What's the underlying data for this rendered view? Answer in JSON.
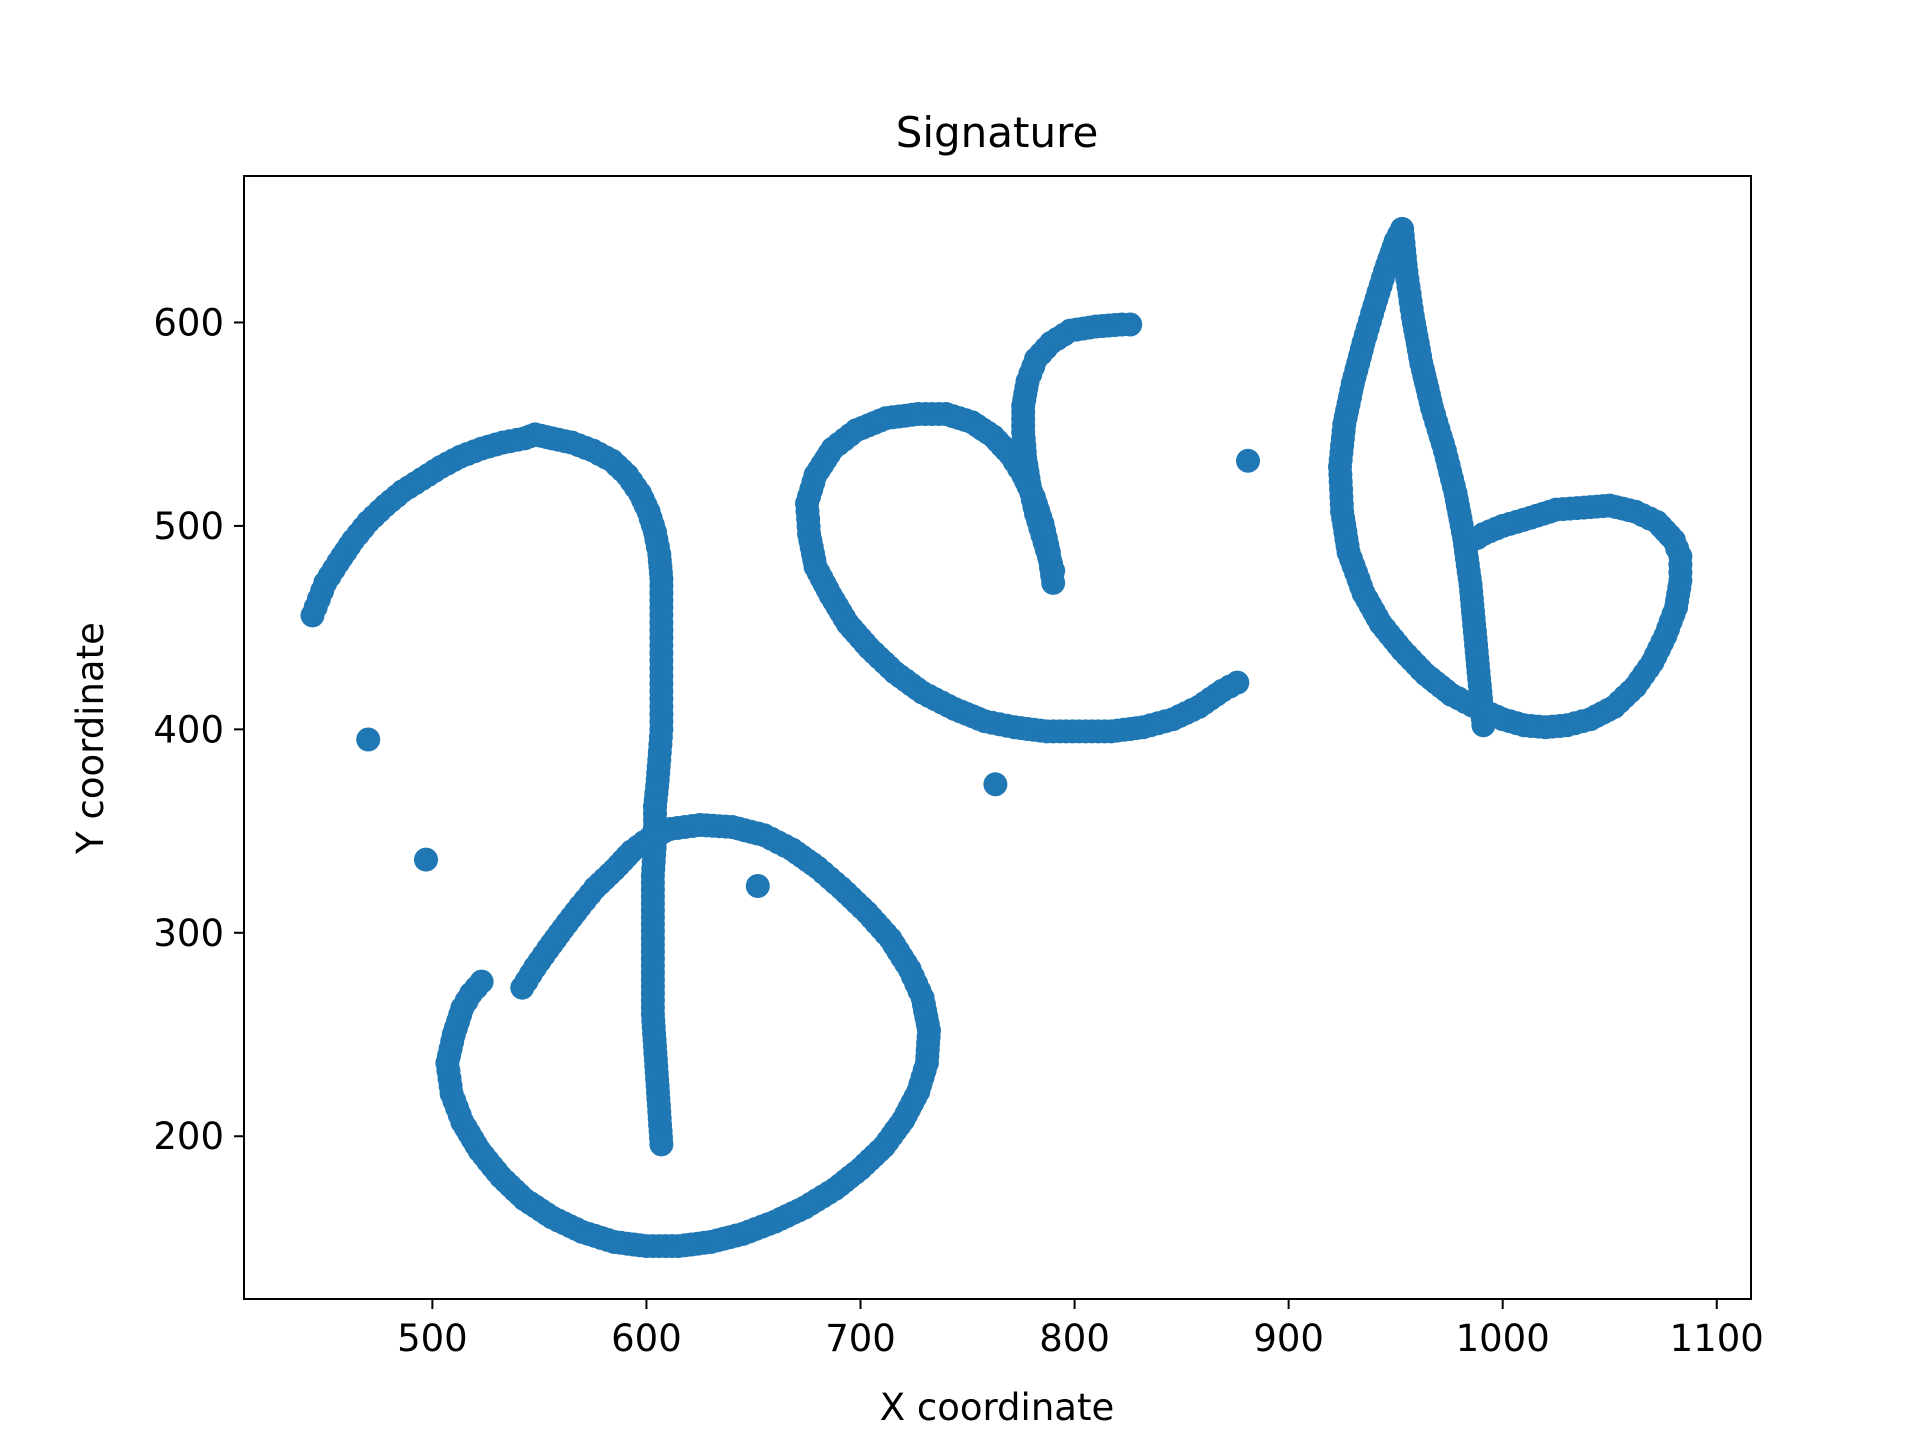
{
  "chart_data": {
    "type": "scatter",
    "title": "Signature",
    "xlabel": "X coordinate",
    "ylabel": "Y coordinate",
    "xlim": [
      412,
      1116
    ],
    "ylim": [
      120,
      672
    ],
    "xticks": [
      500,
      600,
      700,
      800,
      900,
      1000,
      1100
    ],
    "yticks": [
      200,
      300,
      400,
      500,
      600
    ],
    "grid": false,
    "color": "#1f77b4",
    "strokes": [
      [
        [
          444,
          456
        ],
        [
          447,
          464
        ],
        [
          450,
          472
        ],
        [
          456,
          482
        ],
        [
          463,
          493
        ],
        [
          470,
          502
        ],
        [
          478,
          510
        ],
        [
          486,
          517
        ],
        [
          495,
          523
        ],
        [
          504,
          529
        ],
        [
          513,
          534
        ],
        [
          523,
          538
        ],
        [
          533,
          541
        ],
        [
          543,
          543
        ],
        [
          548,
          545
        ],
        [
          556,
          543
        ],
        [
          565,
          541
        ],
        [
          575,
          537
        ],
        [
          584,
          532
        ],
        [
          591,
          525
        ],
        [
          597,
          516
        ],
        [
          601,
          507
        ],
        [
          604,
          497
        ],
        [
          606,
          486
        ],
        [
          607,
          474
        ],
        [
          607,
          460
        ],
        [
          607,
          445
        ],
        [
          607,
          430
        ],
        [
          607,
          415
        ],
        [
          607,
          400
        ],
        [
          606,
          385
        ],
        [
          605,
          372
        ],
        [
          604,
          362
        ]
      ],
      [
        [
          604,
          362
        ],
        [
          604,
          345
        ],
        [
          603,
          328
        ],
        [
          603,
          311
        ],
        [
          603,
          294
        ],
        [
          603,
          277
        ],
        [
          603,
          260
        ],
        [
          604,
          244
        ],
        [
          605,
          228
        ],
        [
          606,
          212
        ],
        [
          607,
          196
        ]
      ],
      [
        [
          542,
          273
        ],
        [
          548,
          283
        ],
        [
          554,
          292
        ],
        [
          561,
          302
        ],
        [
          569,
          313
        ],
        [
          576,
          322
        ],
        [
          585,
          331
        ],
        [
          593,
          340
        ],
        [
          602,
          347
        ],
        [
          611,
          351
        ],
        [
          625,
          353
        ],
        [
          640,
          352
        ],
        [
          655,
          348
        ],
        [
          668,
          341
        ],
        [
          680,
          332
        ],
        [
          691,
          322
        ],
        [
          703,
          310
        ],
        [
          714,
          297
        ],
        [
          723,
          282
        ],
        [
          729,
          268
        ],
        [
          732,
          252
        ],
        [
          731,
          236
        ],
        [
          727,
          222
        ],
        [
          720,
          208
        ],
        [
          711,
          195
        ],
        [
          700,
          184
        ],
        [
          688,
          174
        ],
        [
          674,
          165
        ],
        [
          660,
          158
        ],
        [
          645,
          152
        ],
        [
          630,
          148
        ],
        [
          615,
          146
        ],
        [
          600,
          146
        ],
        [
          585,
          148
        ],
        [
          570,
          153
        ],
        [
          556,
          160
        ],
        [
          543,
          169
        ],
        [
          532,
          180
        ],
        [
          522,
          193
        ],
        [
          514,
          207
        ],
        [
          509,
          221
        ],
        [
          507,
          236
        ],
        [
          510,
          250
        ],
        [
          514,
          263
        ],
        [
          518,
          270
        ],
        [
          523,
          276
        ]
      ],
      [
        [
          790,
          472
        ],
        [
          788,
          487
        ],
        [
          785,
          501
        ],
        [
          781,
          514
        ],
        [
          776,
          525
        ],
        [
          770,
          535
        ],
        [
          762,
          544
        ],
        [
          752,
          551
        ],
        [
          740,
          555
        ],
        [
          727,
          555
        ],
        [
          712,
          553
        ],
        [
          698,
          547
        ],
        [
          687,
          538
        ],
        [
          679,
          525
        ],
        [
          675,
          511
        ],
        [
          676,
          496
        ],
        [
          679,
          480
        ],
        [
          686,
          466
        ],
        [
          694,
          452
        ],
        [
          704,
          440
        ],
        [
          716,
          428
        ],
        [
          729,
          418
        ],
        [
          744,
          410
        ],
        [
          758,
          404
        ],
        [
          772,
          401
        ],
        [
          787,
          399
        ],
        [
          802,
          399
        ],
        [
          817,
          399
        ],
        [
          832,
          401
        ],
        [
          846,
          405
        ],
        [
          858,
          411
        ],
        [
          869,
          419
        ],
        [
          876,
          423
        ]
      ],
      [
        [
          790,
          478
        ],
        [
          786,
          492
        ],
        [
          782,
          506
        ],
        [
          779,
          520
        ],
        [
          777,
          533
        ],
        [
          776,
          546
        ],
        [
          776,
          559
        ],
        [
          778,
          571
        ],
        [
          782,
          582
        ],
        [
          789,
          590
        ],
        [
          798,
          596
        ],
        [
          810,
          598
        ],
        [
          822,
          599
        ],
        [
          826,
          599
        ]
      ],
      [
        [
          991,
          402
        ],
        [
          989,
          425
        ],
        [
          987,
          448
        ],
        [
          985,
          471
        ],
        [
          982,
          494
        ],
        [
          978,
          516
        ],
        [
          973,
          537
        ],
        [
          967,
          558
        ],
        [
          962,
          580
        ],
        [
          958,
          603
        ],
        [
          955,
          625
        ],
        [
          953,
          646
        ],
        [
          950,
          640
        ],
        [
          945,
          625
        ],
        [
          940,
          608
        ],
        [
          935,
          590
        ],
        [
          930,
          570
        ],
        [
          926,
          550
        ],
        [
          924,
          529
        ],
        [
          925,
          507
        ],
        [
          928,
          487
        ],
        [
          935,
          467
        ],
        [
          943,
          452
        ],
        [
          953,
          439
        ],
        [
          964,
          427
        ],
        [
          976,
          417
        ],
        [
          989,
          410
        ],
        [
          1000,
          405
        ],
        [
          1010,
          402
        ],
        [
          1020,
          401
        ],
        [
          1030,
          402
        ],
        [
          1041,
          405
        ],
        [
          1052,
          411
        ],
        [
          1062,
          421
        ],
        [
          1070,
          433
        ],
        [
          1076,
          446
        ],
        [
          1081,
          460
        ],
        [
          1083,
          473
        ],
        [
          1083,
          485
        ],
        [
          1080,
          493
        ],
        [
          1072,
          502
        ],
        [
          1062,
          507
        ],
        [
          1050,
          510
        ],
        [
          1038,
          509
        ],
        [
          1025,
          508
        ],
        [
          1013,
          504
        ],
        [
          1000,
          500
        ],
        [
          991,
          496
        ],
        [
          988,
          494
        ]
      ]
    ],
    "points": [
      [
        470,
        395
      ],
      [
        497,
        336
      ],
      [
        652,
        323
      ],
      [
        763,
        373
      ],
      [
        881,
        532
      ]
    ]
  }
}
